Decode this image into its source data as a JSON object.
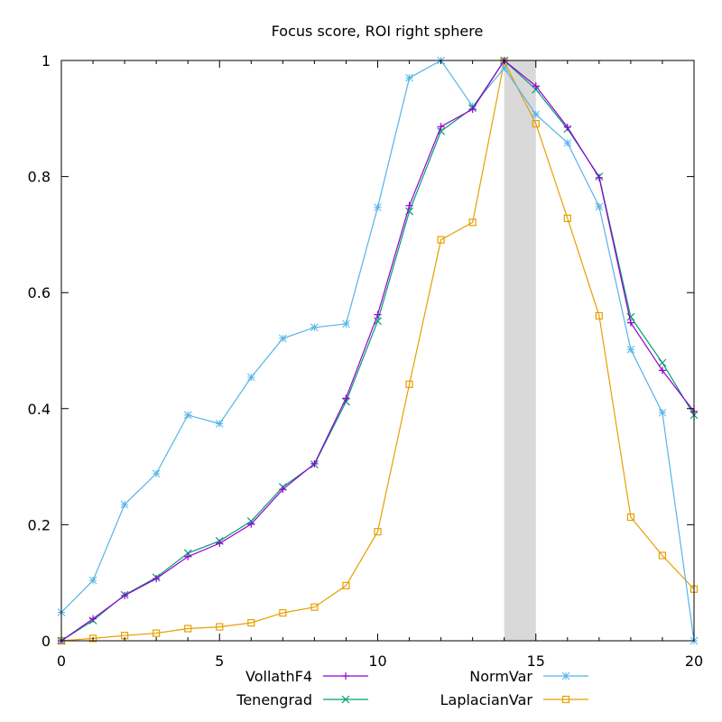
{
  "chart_data": {
    "type": "line",
    "title": "Focus score, ROI right sphere",
    "xlabel": "",
    "ylabel": "",
    "xlim": [
      0,
      20
    ],
    "ylim": [
      0,
      1
    ],
    "x_ticks": [
      "0",
      "5",
      "10",
      "15",
      "20"
    ],
    "y_ticks": [
      "0",
      "0.2",
      "0.4",
      "0.6",
      "0.8",
      "1"
    ],
    "grid": false,
    "legend_position": "bottom",
    "highlight_band": {
      "x_start": 14,
      "x_end": 15,
      "color": "#d9d9d9"
    },
    "x": [
      0,
      1,
      2,
      3,
      4,
      5,
      6,
      7,
      8,
      9,
      10,
      11,
      12,
      13,
      14,
      15,
      16,
      17,
      18,
      19,
      20
    ],
    "series": [
      {
        "name": "VollathF4",
        "color": "#9400d3",
        "marker": "plus",
        "values": [
          0,
          0.038,
          0.078,
          0.107,
          0.145,
          0.168,
          0.201,
          0.261,
          0.305,
          0.418,
          0.562,
          0.75,
          0.886,
          0.916,
          1.0,
          0.956,
          0.885,
          0.798,
          0.548,
          0.466,
          0.395
        ]
      },
      {
        "name": "Tenengrad",
        "color": "#009e73",
        "marker": "cross",
        "values": [
          0,
          0.035,
          0.079,
          0.109,
          0.151,
          0.172,
          0.206,
          0.265,
          0.304,
          0.412,
          0.551,
          0.74,
          0.878,
          0.918,
          1.0,
          0.95,
          0.882,
          0.8,
          0.558,
          0.479,
          0.389
        ]
      },
      {
        "name": "NormVar",
        "color": "#56b4e9",
        "marker": "star",
        "values": [
          0.049,
          0.104,
          0.235,
          0.288,
          0.389,
          0.374,
          0.454,
          0.521,
          0.54,
          0.546,
          0.747,
          0.97,
          1.0,
          0.921,
          0.987,
          0.907,
          0.858,
          0.748,
          0.502,
          0.393,
          0.0
        ]
      },
      {
        "name": "LaplacianVar",
        "color": "#e69f00",
        "marker": "square",
        "values": [
          0,
          0.004,
          0.009,
          0.013,
          0.021,
          0.024,
          0.031,
          0.048,
          0.058,
          0.095,
          0.188,
          0.442,
          0.691,
          0.721,
          0.998,
          0.891,
          0.728,
          0.56,
          0.213,
          0.147,
          0.089
        ]
      }
    ]
  }
}
